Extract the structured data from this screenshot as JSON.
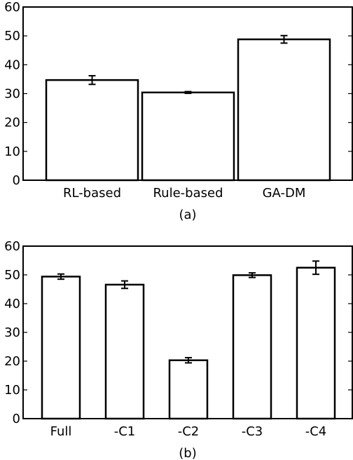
{
  "chart_data": [
    {
      "type": "bar",
      "caption": "(a)",
      "categories": [
        "RL-based",
        "Rule-based",
        "GA-DM"
      ],
      "values": [
        34.7,
        30.4,
        48.8
      ],
      "errors": [
        1.5,
        0.3,
        1.3
      ],
      "ylim": [
        0,
        60
      ],
      "yticks": [
        0,
        10,
        20,
        30,
        40,
        50,
        60
      ],
      "xlabel": "",
      "ylabel": "",
      "title": "",
      "grid": false,
      "bar_fill": "#ffffff",
      "bar_edge": "#000000"
    },
    {
      "type": "bar",
      "caption": "(b)",
      "categories": [
        "Full",
        "-C1",
        "-C2",
        "-C3",
        "-C4"
      ],
      "values": [
        49.4,
        46.6,
        20.3,
        49.9,
        52.5
      ],
      "errors": [
        0.9,
        1.3,
        0.9,
        0.8,
        2.3
      ],
      "ylim": [
        0,
        60
      ],
      "yticks": [
        0,
        10,
        20,
        30,
        40,
        50,
        60
      ],
      "xlabel": "",
      "ylabel": "",
      "title": "",
      "grid": false,
      "bar_fill": "#ffffff",
      "bar_edge": "#000000"
    }
  ]
}
